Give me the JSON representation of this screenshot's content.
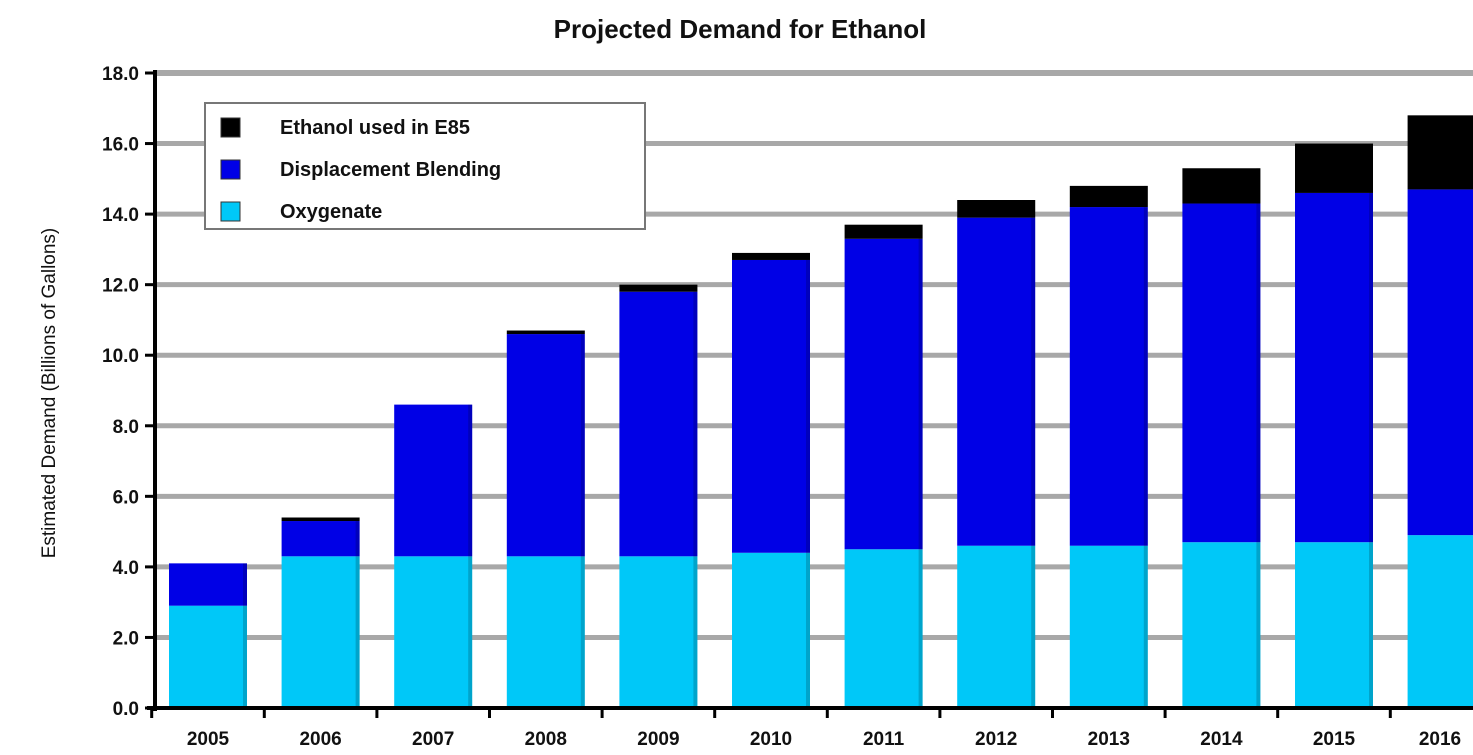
{
  "chart_data": {
    "type": "bar",
    "stacked": true,
    "title": "Projected Demand for Ethanol",
    "xlabel": "",
    "ylabel": "Estimated Demand (Billions of Gallons)",
    "ylim": [
      0,
      18
    ],
    "yticks": [
      "0.0",
      "2.0",
      "4.0",
      "6.0",
      "8.0",
      "10.0",
      "12.0",
      "14.0",
      "16.0",
      "18.0"
    ],
    "grid": true,
    "legend_position": "top-left",
    "categories": [
      "2005",
      "2006",
      "2007",
      "2008",
      "2009",
      "2010",
      "2011",
      "2012",
      "2013",
      "2014",
      "2015",
      "2016"
    ],
    "series": [
      {
        "name": "Oxygenate",
        "color": "#00c8f8",
        "values": [
          2.9,
          4.3,
          4.3,
          4.3,
          4.3,
          4.4,
          4.5,
          4.6,
          4.6,
          4.7,
          4.7,
          4.9
        ]
      },
      {
        "name": "Displacement Blending",
        "color": "#0000e6",
        "values": [
          1.2,
          1.0,
          4.3,
          6.3,
          7.5,
          8.3,
          8.8,
          9.3,
          9.6,
          9.6,
          9.9,
          9.8
        ]
      },
      {
        "name": "Ethanol used in E85",
        "color": "#000000",
        "values": [
          0.0,
          0.1,
          0.0,
          0.1,
          0.2,
          0.2,
          0.4,
          0.5,
          0.6,
          1.0,
          1.4,
          2.1
        ]
      }
    ],
    "legend_order": [
      "Ethanol used in E85",
      "Displacement Blending",
      "Oxygenate"
    ]
  }
}
